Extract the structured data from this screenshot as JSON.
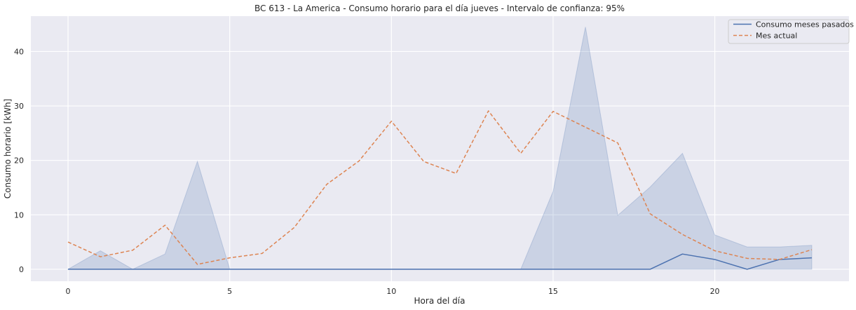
{
  "chart_data": {
    "type": "line",
    "title": "BC 613 - La America - Consumo horario para el día jueves - Intervalo de confianza: 95%",
    "xlabel": "Hora del día",
    "ylabel": "Consumo horario [kWh]",
    "xlim": [
      -1.15,
      24.15
    ],
    "ylim": [
      -2.2,
      46.5
    ],
    "xticks": [
      0,
      5,
      10,
      15,
      20
    ],
    "yticks": [
      0,
      10,
      20,
      30,
      40
    ],
    "grid": true,
    "legend_position": "top-right",
    "x": [
      0,
      1,
      2,
      3,
      4,
      5,
      6,
      7,
      8,
      9,
      10,
      11,
      12,
      13,
      14,
      15,
      16,
      17,
      18,
      19,
      20,
      21,
      22,
      23
    ],
    "series": [
      {
        "name": "Consumo meses pasados",
        "style": "solid",
        "color": "#4c72b0",
        "values": [
          0,
          0,
          0,
          0,
          0,
          0,
          0,
          0,
          0,
          0,
          0,
          0,
          0,
          0,
          0,
          0,
          0,
          0,
          0,
          2.8,
          1.8,
          0,
          1.8,
          2.1
        ],
        "ci_lower": [
          0,
          0,
          0,
          0,
          0,
          0,
          0,
          0,
          0,
          0,
          0,
          0,
          0,
          0,
          0,
          0,
          0,
          0,
          0,
          0,
          0,
          0,
          0,
          0
        ],
        "ci_upper": [
          0,
          3.4,
          0,
          2.8,
          19.8,
          0,
          0,
          0,
          0,
          0,
          0,
          0,
          0,
          0,
          0,
          14.3,
          44.5,
          9.9,
          15.1,
          21.3,
          6.3,
          4.1,
          4.1,
          4.4
        ]
      },
      {
        "name": "Mes actual",
        "style": "dashed",
        "color": "#dd8452",
        "values": [
          5.0,
          2.3,
          3.5,
          8.1,
          0.9,
          2.1,
          2.9,
          7.7,
          15.6,
          19.9,
          27.2,
          19.8,
          17.6,
          29.1,
          21.3,
          29.0,
          26.1,
          23.2,
          10.2,
          6.4,
          3.4,
          2.0,
          1.8,
          3.6
        ]
      }
    ]
  },
  "colors": {
    "plot_background": "#eaeaf2",
    "grid": "#ffffff",
    "ci_fill": "#4c72b0"
  }
}
